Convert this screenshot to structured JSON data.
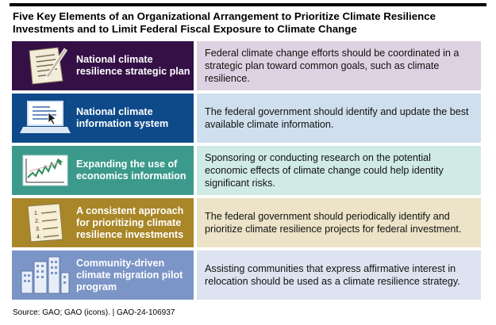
{
  "title_line1": "Five Key Elements of an Organizational Arrangement to Prioritize Climate Resilience",
  "title_line2": "Investments and to Limit Federal Fiscal Exposure to Climate Change",
  "rows": [
    {
      "label": "National climate resilience strategic plan",
      "description": "Federal climate change efforts should be coordinated in a strategic plan toward common goals, such as climate resilience.",
      "icon": "document-pen-icon",
      "dark": "#341046",
      "light": "#dcd2e1"
    },
    {
      "label": "National climate information system",
      "description": "The federal government should identify and update the best available climate information.",
      "icon": "laptop-cursor-icon",
      "dark": "#0e4a8a",
      "light": "#cfdfee"
    },
    {
      "label": "Expanding the use of economics information",
      "description": "Sponsoring or conducting research on the potential economic effects of climate change could help identity significant risks.",
      "icon": "line-chart-icon",
      "dark": "#3c9a8c",
      "light": "#d0eae6"
    },
    {
      "label": "A consistent approach for prioritizing climate resilience investments",
      "description": "The federal government should periodically identify and prioritize climate resilience projects for federal investment.",
      "icon": "numbered-list-icon",
      "dark": "#a98627",
      "light": "#ece3c8"
    },
    {
      "label": "Community-driven climate migration pilot program",
      "description": "Assisting communities that express affirmative interest in relocation should be used as a climate resilience strategy.",
      "icon": "buildings-icon",
      "dark": "#7b95c7",
      "light": "#dde3f0"
    }
  ],
  "list_numbers": [
    "1.",
    "2.",
    "3.",
    "4."
  ],
  "source": "Source: GAO; GAO (icons).  |  GAO-24-106937"
}
